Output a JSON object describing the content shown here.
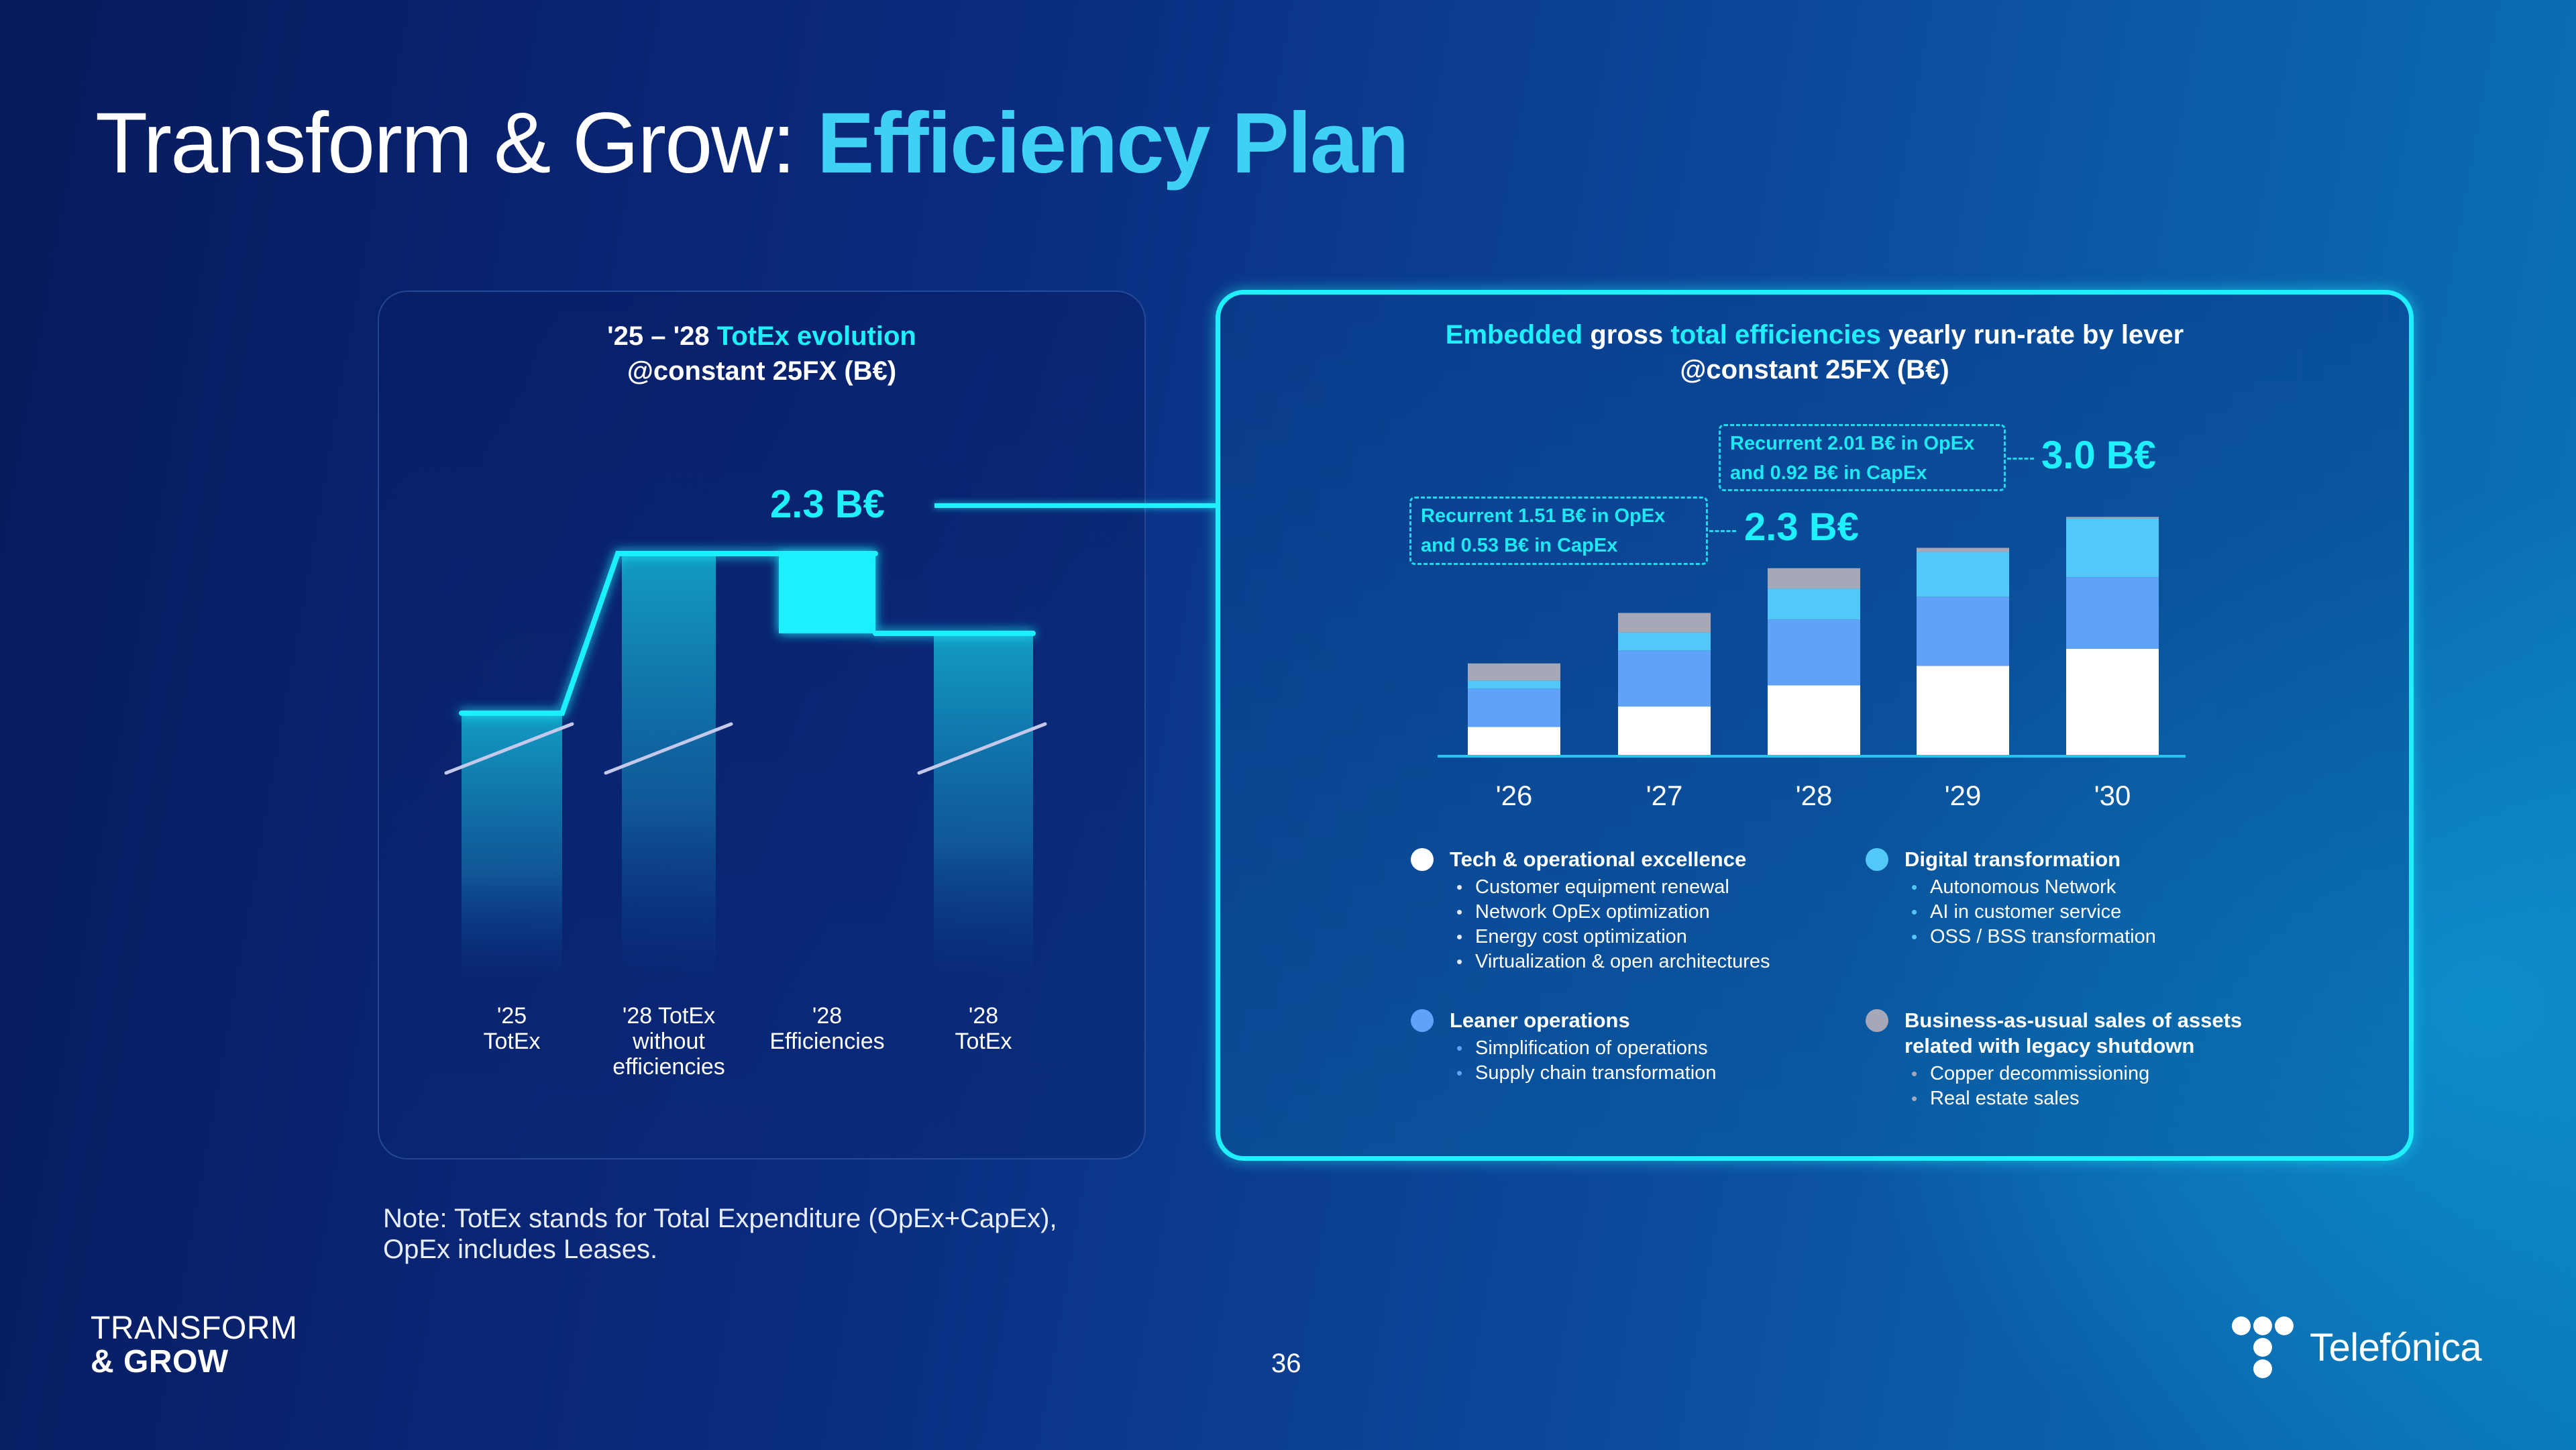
{
  "title": {
    "prefix": "Transform & Grow:",
    "highlight": "Efficiency Plan"
  },
  "left_panel": {
    "title_line1_white": "'25 – '28",
    "title_line1_cyan": "TotEx evolution",
    "title_line2": "@constant 25FX (B€)",
    "efficiency_callout": "2.3 B€"
  },
  "right_panel": {
    "title_parts": [
      {
        "text": "Embedded",
        "color": "cyan"
      },
      {
        "text": "gross",
        "color": "white"
      },
      {
        "text": "total efficiencies",
        "color": "cyan"
      },
      {
        "text": "yearly run-rate by lever",
        "color": "white"
      }
    ],
    "title_line2": "@constant 25FX (B€)",
    "callouts": [
      {
        "year": "'28",
        "line1": "Recurrent 1.51 B€ in OpEx",
        "line2": "and 0.53 B€ in CapEx",
        "value": "2.3 B€"
      },
      {
        "year": "'30",
        "line1": "Recurrent 2.01 B€ in OpEx",
        "line2": "and 0.92 B€ in CapEx",
        "value": "3.0 B€"
      }
    ],
    "legend": [
      {
        "key": "tech",
        "title": "Tech & operational excellence",
        "color": "#ffffff",
        "items": [
          "Customer equipment renewal",
          "Network OpEx optimization",
          "Energy cost optimization",
          "Virtualization & open architectures"
        ]
      },
      {
        "key": "digital",
        "title": "Digital transformation",
        "color": "#52c8f8",
        "items": [
          "Autonomous Network",
          "AI in customer service",
          "OSS / BSS transformation"
        ]
      },
      {
        "key": "leaner",
        "title": "Leaner operations",
        "color": "#5fa2f8",
        "items": [
          "Simplification of operations",
          "Supply chain transformation"
        ]
      },
      {
        "key": "bau",
        "title": "Business-as-usual sales of assets related with legacy shutdown",
        "color": "#a6a8b8",
        "items": [
          "Copper decommissioning",
          "Real estate sales"
        ]
      }
    ]
  },
  "colors": {
    "accent_cyan": "#1ff0ff",
    "title_highlight": "#3fd0f5",
    "tech": "#ffffff",
    "leaner": "#5fa2f8",
    "digital": "#52c8f8",
    "bau": "#a6a8b8"
  },
  "chart_data": [
    {
      "type": "bar",
      "subtype": "waterfall",
      "title": "'25 – '28 TotEx evolution @constant 25FX (B€)",
      "categories": [
        "'25 TotEx",
        "'28 TotEx without efficiencies",
        "'28 Efficiencies",
        "'28 TotEx"
      ],
      "category_lines": [
        [
          "'25",
          "TotEx"
        ],
        [
          "'28 TotEx",
          "without",
          "efficiencies"
        ],
        [
          "'28",
          "Efficiencies"
        ],
        [
          "'28",
          "TotEx"
        ]
      ],
      "axis_break": true,
      "relative_level_be": [
        -4.6,
        0,
        -2.3,
        -2.3
      ],
      "efficiency_value": 2.3,
      "annotations": [
        "2.3 B€"
      ],
      "grid": false,
      "legend": "none"
    },
    {
      "type": "bar",
      "subtype": "stacked",
      "title": "Embedded gross total efficiencies yearly run-rate by lever @constant 25FX (B€)",
      "categories": [
        "'26",
        "'27",
        "'28",
        "'29",
        "'30"
      ],
      "series": [
        {
          "name": "Tech & operational excellence",
          "color": "#ffffff",
          "values": [
            0.36,
            0.61,
            0.87,
            1.11,
            1.32
          ]
        },
        {
          "name": "Leaner operations",
          "color": "#5fa2f8",
          "values": [
            0.47,
            0.69,
            0.81,
            0.85,
            0.88
          ]
        },
        {
          "name": "Digital transformation",
          "color": "#52c8f8",
          "values": [
            0.1,
            0.22,
            0.38,
            0.55,
            0.72
          ]
        },
        {
          "name": "Business-as-usual sales of assets related with legacy shutdown",
          "color": "#a6a8b8",
          "values": [
            0.21,
            0.24,
            0.25,
            0.05,
            0.02
          ]
        }
      ],
      "totals_labeled": {
        "'28": 2.3,
        "'30": 3.0
      },
      "annotations": [
        "Recurrent 1.51 B€ in OpEx and 0.53 B€ in CapEx → 2.3 B€ ('28)",
        "Recurrent 2.01 B€ in OpEx and 0.92 B€ in CapEx → 3.0 B€ ('30)"
      ],
      "ylim": [
        0,
        3.0
      ],
      "xlabel": "",
      "ylabel": "",
      "grid": false,
      "legend": "bottom"
    }
  ],
  "footer": {
    "note_line1": "Note: TotEx stands for Total Expenditure (OpEx+CapEx),",
    "note_line2": "OpEx includes Leases.",
    "brand_line1": "TRANSFORM",
    "brand_line2": "& GROW",
    "page_number": "36",
    "logo_text": "Telefónica",
    "logo_icon": "telefonica-dots-logo"
  }
}
